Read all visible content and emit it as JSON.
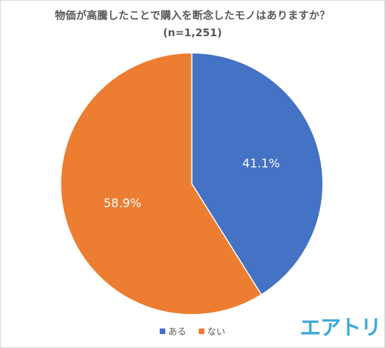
{
  "chart_data": {
    "type": "pie",
    "title": "物価が高騰したことで購入を断念したモノはありますか？",
    "subtitle": "(n=1,251)",
    "slices": [
      {
        "label": "ある",
        "value": 41.1,
        "display": "41.1%",
        "color": "#4472c4"
      },
      {
        "label": "ない",
        "value": 58.9,
        "display": "58.9%",
        "color": "#ed7d31"
      }
    ],
    "legend_position": "bottom"
  },
  "logo": {
    "text": "エアトリ",
    "color": "#3fa9d9"
  }
}
